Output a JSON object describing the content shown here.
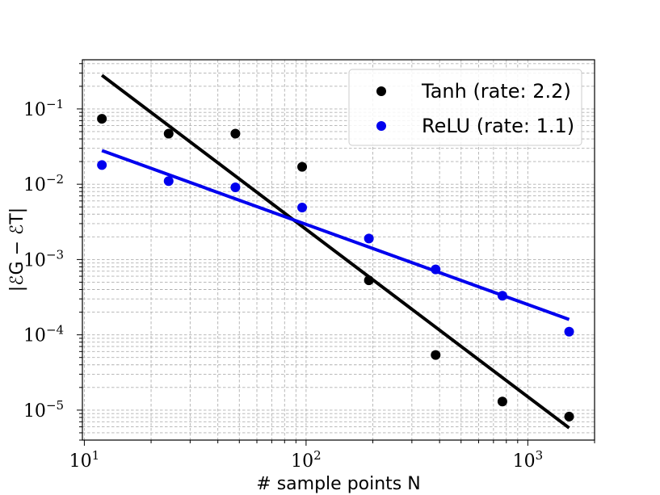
{
  "chart_data": {
    "type": "scatter",
    "scale": {
      "x": "log",
      "y": "log"
    },
    "xlabel": "# sample points N",
    "ylabel": "|ℰG − ℰT|",
    "xlim": [
      9.8,
      2000
    ],
    "ylim": [
      4e-06,
      0.45
    ],
    "x_ticks": [
      {
        "base": "10",
        "exp": "1",
        "value": 10
      },
      {
        "base": "10",
        "exp": "2",
        "value": 100
      },
      {
        "base": "10",
        "exp": "3",
        "value": 1000
      }
    ],
    "y_ticks": [
      {
        "base": "10",
        "exp": "−1",
        "value": 0.1
      },
      {
        "base": "10",
        "exp": "−2",
        "value": 0.01
      },
      {
        "base": "10",
        "exp": "−3",
        "value": 0.001
      },
      {
        "base": "10",
        "exp": "−4",
        "value": 0.0001
      },
      {
        "base": "10",
        "exp": "−5",
        "value": 1e-05
      }
    ],
    "grid": true,
    "legend_position": "top-right",
    "series": [
      {
        "name": "Tanh (rate: 2.2)",
        "color": "#000000",
        "x": [
          12,
          24,
          48,
          96,
          192,
          384,
          768,
          1536
        ],
        "y": [
          0.074,
          0.047,
          0.047,
          0.017,
          0.00053,
          5.4e-05,
          1.3e-05,
          8.2e-06
        ],
        "fit": {
          "x": [
            12,
            1536
          ],
          "y": [
            0.28,
            5.8e-06
          ]
        }
      },
      {
        "name": "ReLU (rate: 1.1)",
        "color": "#0000ee",
        "x": [
          12,
          24,
          48,
          96,
          192,
          384,
          768,
          1536
        ],
        "y": [
          0.018,
          0.011,
          0.0091,
          0.0049,
          0.0019,
          0.00074,
          0.00033,
          0.00011
        ],
        "fit": {
          "x": [
            12,
            1536
          ],
          "y": [
            0.028,
            0.00016
          ]
        }
      }
    ]
  }
}
